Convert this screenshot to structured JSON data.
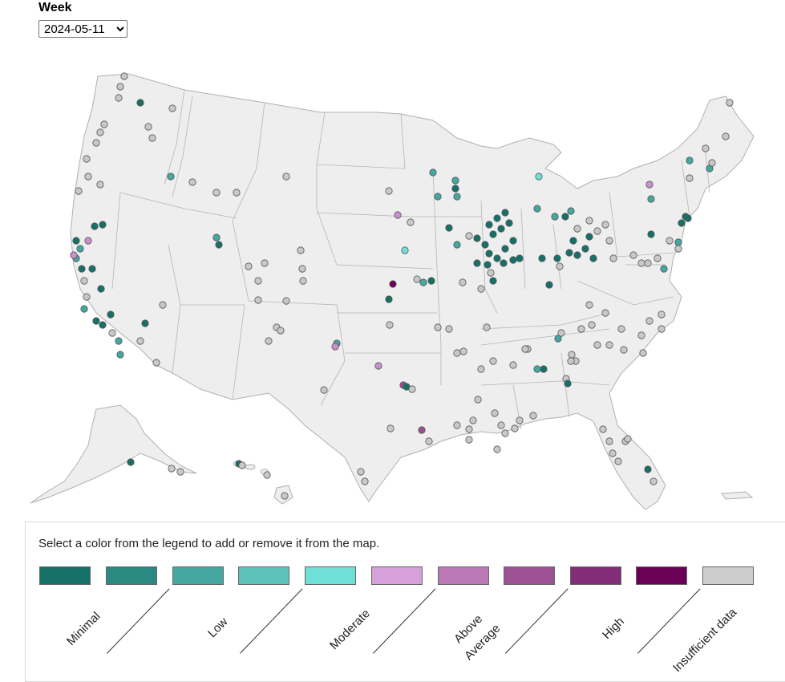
{
  "week_control": {
    "label": "Week",
    "selected": "2024-05-11"
  },
  "legend": {
    "instructions": "Select a color from the legend to add or remove it from the map.",
    "swatches": [
      {
        "key": "minimal",
        "color": "#177068"
      },
      {
        "key": "minimal2",
        "color": "#2a8a82"
      },
      {
        "key": "low",
        "color": "#44a7a0"
      },
      {
        "key": "low2",
        "color": "#5cc3bb"
      },
      {
        "key": "moderate",
        "color": "#6ee0d6"
      },
      {
        "key": "moderate2",
        "color": "#d6a0da"
      },
      {
        "key": "above",
        "color": "#b979b6"
      },
      {
        "key": "above2",
        "color": "#9d5295"
      },
      {
        "key": "high",
        "color": "#842c77"
      },
      {
        "key": "high2",
        "color": "#6b0057"
      },
      {
        "key": "insufficient",
        "color": "#cccccc"
      }
    ],
    "labels": {
      "minimal": "Minimal",
      "low": "Low",
      "moderate": "Moderate",
      "above_1": "Above",
      "above_2": "Average",
      "high": "High",
      "insufficient": "Insufficient data"
    }
  }
}
